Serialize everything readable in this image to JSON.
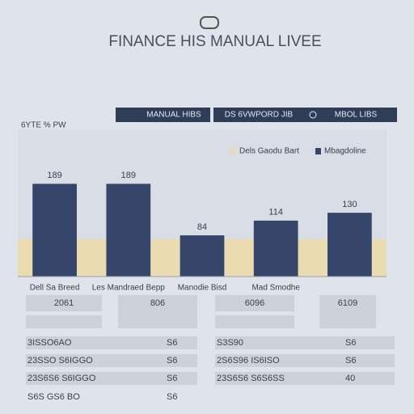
{
  "header": {
    "title": "FINANCE HIS MANUAL LIVEE",
    "tab_left": "MANUAL HIBS",
    "tab_right": "DS 6VWPORD JIB",
    "tab_right_extra": "MBOL LIBS"
  },
  "chart_data": {
    "type": "bar",
    "ylabel": "6YTE % PW",
    "categories": [
      "Dell Sa Breed",
      "Les Mandraed Bepp",
      "Manodie Bisd",
      "Mad Smodhe",
      null
    ],
    "series": [
      {
        "name": "Dels Gaodu Bart",
        "color": "#ebdbb0",
        "values": [
          76,
          76,
          76,
          76,
          76
        ]
      },
      {
        "name": "Mbagdoline",
        "color": "#36456a",
        "values": [
          189,
          189,
          84,
          114,
          130
        ]
      }
    ],
    "ylim": [
      0,
      300
    ]
  },
  "table": {
    "rows": [
      [
        "2061",
        "806",
        "6096",
        "6109"
      ],
      [
        "3ISSO6AO",
        "S6",
        "S3S90",
        "S6"
      ],
      [
        "23SSO S6IGGO",
        "S6",
        "2S6S96 IS6ISO",
        "S6"
      ],
      [
        "23S6S6 S6IGGO",
        "S6",
        "23S6S6 S6S6SS",
        "40"
      ],
      [
        "S6S GS6 BO",
        "S6"
      ]
    ]
  }
}
